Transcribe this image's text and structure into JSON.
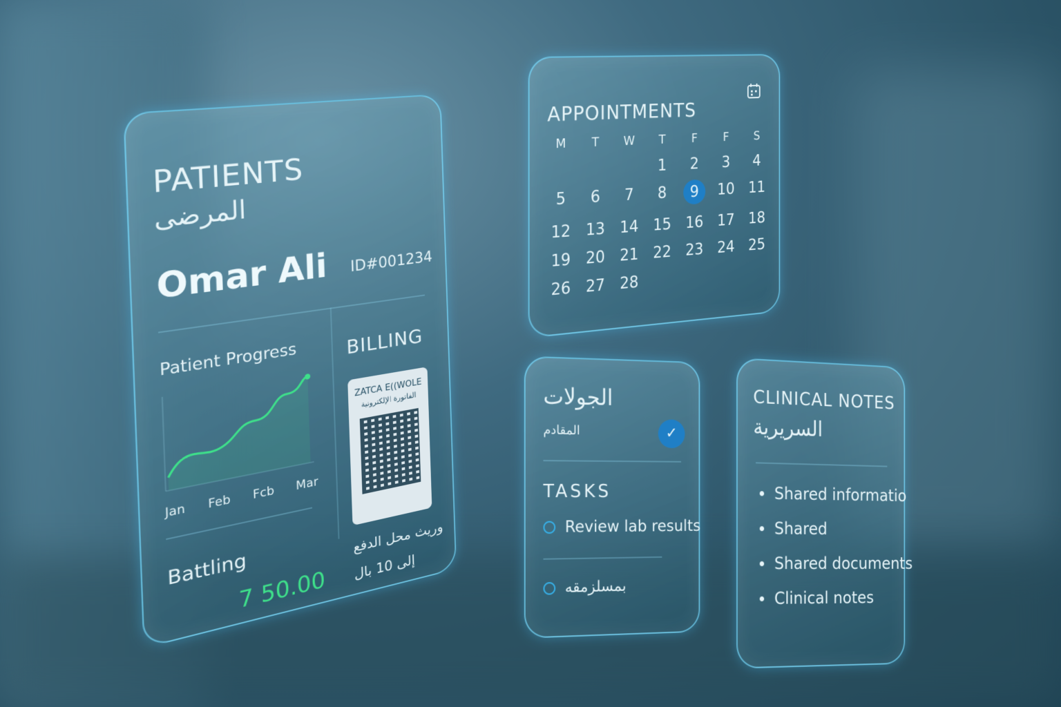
{
  "patients": {
    "title": "PATIENTS",
    "title_ar": "المرضى",
    "name": "Omar Ali",
    "id": "ID#001234",
    "progress_title": "Patient Progress",
    "progress_labels": [
      "Jan",
      "Feb",
      "Fcb",
      "Mar"
    ],
    "billing_label": "Battling",
    "billing_amount": "7 50.00",
    "accent": "#3ee08a"
  },
  "billing": {
    "title": "BILLING",
    "qr_title": "ZATCA E((WOLE",
    "qr_sub": "الفاتورة الإلكترونية",
    "line1": "وريث محل الدفع",
    "line2": "إلى 10 بال"
  },
  "appointments": {
    "title": "APPOINTMENTS",
    "icon": "calendar-icon",
    "days": [
      "M",
      "T",
      "W",
      "T",
      "F",
      "F",
      "S"
    ],
    "dates": [
      "",
      "",
      "",
      "1",
      "2",
      "3",
      "4",
      "5",
      "6",
      "7",
      "8",
      "9",
      "10",
      "11",
      "12",
      "13",
      "14",
      "15",
      "16",
      "17",
      "18",
      "19",
      "20",
      "21",
      "22",
      "23",
      "24",
      "25",
      "26",
      "27",
      "28"
    ],
    "selected": "9",
    "selected_color": "#1f7fc6"
  },
  "tasks": {
    "title_ar": "الجولات",
    "subtitle_ar": "المقادم",
    "title": "TASKS",
    "items": [
      "Review lab results",
      "بمسلزمقه"
    ]
  },
  "notes": {
    "title": "CLINICAL NOTES",
    "title_ar": "السريرية",
    "items": [
      "Shared informatio",
      "Shared",
      "Shared documents",
      "Clinical notes"
    ]
  }
}
